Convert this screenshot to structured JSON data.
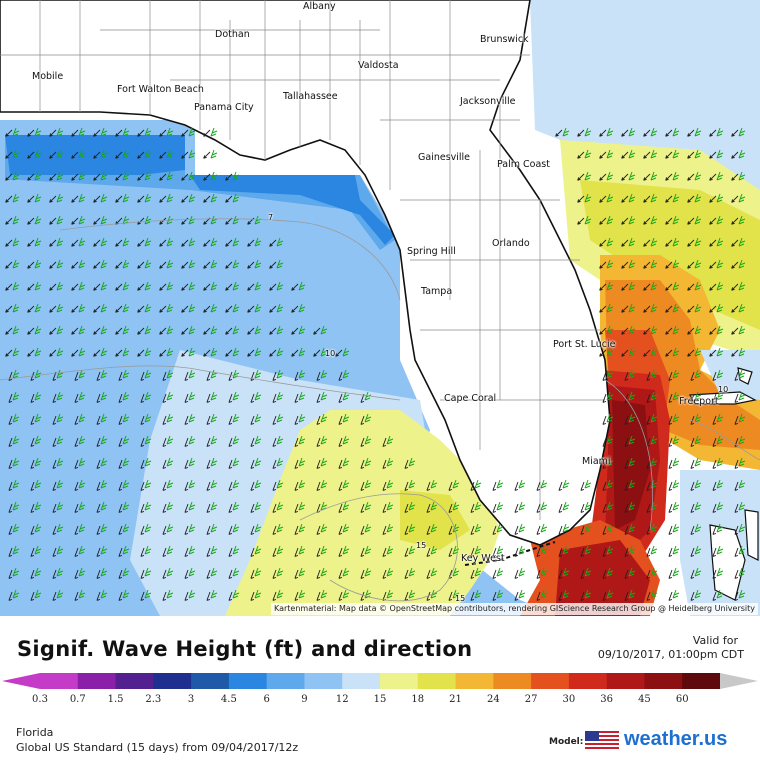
{
  "map": {
    "attribution": "Kartenmaterial: Map data © OpenStreetMap contributors, rendering GIScience Research Group @ Heidelberg University",
    "cities": [
      "Albany",
      "Dothan",
      "Brunswick",
      "Valdosta",
      "Mobile",
      "Fort Walton Beach",
      "Jacksonville",
      "Tallahassee",
      "Panama City",
      "Palm Coast",
      "Gainesville",
      "Orlando",
      "Spring Hill",
      "Tampa",
      "Port St. Lucie",
      "Cape Coral",
      "Miami",
      "Key West",
      "Freeport"
    ],
    "contour_labels": [
      "7",
      "10",
      "15",
      "10",
      "15"
    ]
  },
  "header": {
    "title": "Signif. Wave Height (ft) and direction",
    "valid_label": "Valid for",
    "valid_date": "09/10/2017, 01:00pm CDT"
  },
  "colorbar": {
    "unit": "ft",
    "ticks": [
      "0.3",
      "0.7",
      "1.5",
      "2.3",
      "3",
      "4.5",
      "6",
      "9",
      "12",
      "15",
      "18",
      "21",
      "24",
      "27",
      "30",
      "36",
      "45",
      "60"
    ],
    "colors": [
      "#c33bc6",
      "#8a1fa8",
      "#53208f",
      "#1e2f8f",
      "#1e5aa8",
      "#2a86e0",
      "#5ea8ec",
      "#8fc3f3",
      "#c9e2f8",
      "#eef28a",
      "#e2e34a",
      "#f3b734",
      "#ee8a22",
      "#e4511e",
      "#cf2a1c",
      "#b01817",
      "#8c0f12",
      "#5e0a0c"
    ]
  },
  "footer": {
    "region": "Florida",
    "model_run": "Global US Standard (15 days) from 09/04/2017/12z",
    "model_label": "Model:",
    "brand": "weather.",
    "brand_suffix": "us"
  }
}
